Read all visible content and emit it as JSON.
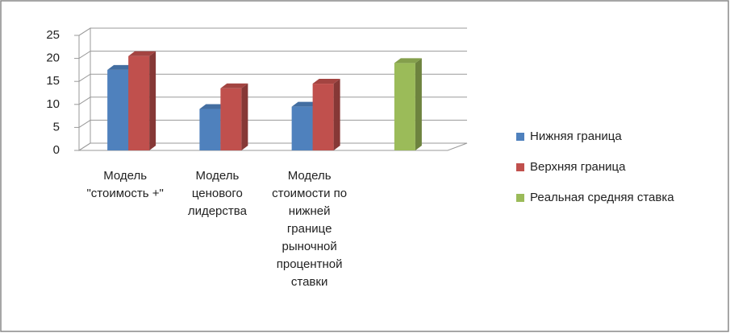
{
  "chart_data": {
    "type": "bar3d",
    "categories": [
      "Модель \"стоимость +\"",
      "Модель ценового лидерства",
      "Модель стоимости по нижней границе рыночной процентной ставки",
      null
    ],
    "series": [
      {
        "name": "Нижняя граница",
        "color": "#4f81bd",
        "values": [
          17.5,
          9,
          9.5,
          null
        ]
      },
      {
        "name": "Верхняя граница",
        "color": "#c0504d",
        "values": [
          20.5,
          13.5,
          14.5,
          null
        ]
      },
      {
        "name": "Реальная средняя ставка",
        "color": "#9bbb59",
        "values": [
          null,
          null,
          null,
          19
        ]
      }
    ],
    "ylim": [
      0,
      25
    ],
    "yticks": [
      0,
      5,
      10,
      15,
      20,
      25
    ],
    "grid": true,
    "legend": "right"
  }
}
